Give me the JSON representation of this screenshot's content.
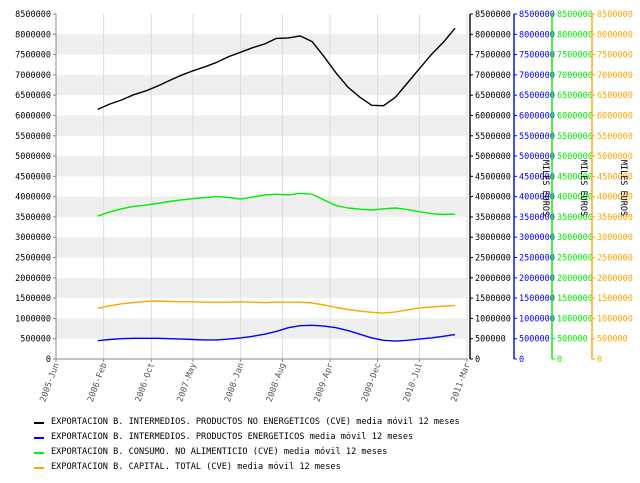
{
  "chart_data": {
    "type": "line",
    "x_tick_labels": [
      "2005-Jun",
      "2006-Feb",
      "2006-Oct",
      "2007-May",
      "2008-Jan",
      "2008-Aug",
      "2009-Apr",
      "2009-Dec",
      "2010-Jul",
      "2011-Mar"
    ],
    "y_tick_labels": [
      "0",
      "500000",
      "1000000",
      "1500000",
      "2000000",
      "2500000",
      "3000000",
      "3500000",
      "4000000",
      "4500000",
      "5000000",
      "5500000",
      "6000000",
      "6500000",
      "7000000",
      "7500000",
      "8000000",
      "8500000"
    ],
    "ylim": [
      0,
      8500000
    ],
    "grid": true,
    "legend_position": "bottom",
    "axis_unit_label": "MILES EUROS",
    "series": [
      {
        "name": "EXPORTACION B. INTERMEDIOS. PRODUCTOS NO ENERGETICOS (CVE) media móvil 12 meses",
        "color": "#000000",
        "axis": "black",
        "x": [
          "2006-01",
          "2006-03",
          "2006-05",
          "2006-07",
          "2006-09",
          "2006-11",
          "2007-01",
          "2007-03",
          "2007-05",
          "2007-07",
          "2007-09",
          "2007-11",
          "2008-01",
          "2008-03",
          "2008-05",
          "2008-07",
          "2008-09",
          "2008-11",
          "2009-01",
          "2009-03",
          "2009-05",
          "2009-07",
          "2009-09",
          "2009-11",
          "2010-01",
          "2010-03",
          "2010-05",
          "2010-07",
          "2010-09",
          "2010-11",
          "2011-01"
        ],
        "values": [
          6150000,
          6280000,
          6380000,
          6510000,
          6600000,
          6720000,
          6860000,
          6990000,
          7100000,
          7200000,
          7310000,
          7450000,
          7560000,
          7670000,
          7760000,
          7900000,
          7910000,
          7960000,
          7820000,
          7450000,
          7050000,
          6700000,
          6450000,
          6250000,
          6240000,
          6450000,
          6800000,
          7150000,
          7500000,
          7800000,
          8150000
        ]
      },
      {
        "name": "EXPORTACION B. INTERMEDIOS. PRODUCTOS ENERGETICOS media móvil 12 meses",
        "color": "#0000ff",
        "axis": "blue",
        "x": [
          "2006-01",
          "2006-03",
          "2006-05",
          "2006-07",
          "2006-09",
          "2006-11",
          "2007-01",
          "2007-03",
          "2007-05",
          "2007-07",
          "2007-09",
          "2007-11",
          "2008-01",
          "2008-03",
          "2008-05",
          "2008-07",
          "2008-09",
          "2008-11",
          "2009-01",
          "2009-03",
          "2009-05",
          "2009-07",
          "2009-09",
          "2009-11",
          "2010-01",
          "2010-03",
          "2010-05",
          "2010-07",
          "2010-09",
          "2010-11",
          "2011-01"
        ],
        "values": [
          450000,
          480000,
          500000,
          510000,
          510000,
          510000,
          500000,
          490000,
          480000,
          470000,
          470000,
          490000,
          520000,
          560000,
          610000,
          680000,
          770000,
          820000,
          830000,
          810000,
          770000,
          700000,
          610000,
          520000,
          460000,
          440000,
          460000,
          490000,
          520000,
          560000,
          600000
        ]
      },
      {
        "name": "EXPORTACION B. CONSUMO. NO ALIMENTICIO (CVE) media móvil 12 meses",
        "color": "#00ee00",
        "axis": "green",
        "x": [
          "2006-01",
          "2006-03",
          "2006-05",
          "2006-07",
          "2006-09",
          "2006-11",
          "2007-01",
          "2007-03",
          "2007-05",
          "2007-07",
          "2007-09",
          "2007-11",
          "2008-01",
          "2008-03",
          "2008-05",
          "2008-07",
          "2008-09",
          "2008-11",
          "2009-01",
          "2009-03",
          "2009-05",
          "2009-07",
          "2009-09",
          "2009-11",
          "2010-01",
          "2010-03",
          "2010-05",
          "2010-07",
          "2010-09",
          "2010-11",
          "2011-01"
        ],
        "values": [
          3520000,
          3620000,
          3700000,
          3760000,
          3790000,
          3830000,
          3880000,
          3920000,
          3950000,
          3980000,
          4000000,
          3980000,
          3940000,
          3990000,
          4040000,
          4060000,
          4040000,
          4080000,
          4060000,
          3920000,
          3780000,
          3720000,
          3690000,
          3670000,
          3700000,
          3720000,
          3680000,
          3630000,
          3580000,
          3560000,
          3570000
        ]
      },
      {
        "name": "EXPORTACION B. CAPITAL. TOTAL (CVE) media móvil 12 meses",
        "color": "#ffa500",
        "axis": "orange",
        "x": [
          "2006-01",
          "2006-03",
          "2006-05",
          "2006-07",
          "2006-09",
          "2006-11",
          "2007-01",
          "2007-03",
          "2007-05",
          "2007-07",
          "2007-09",
          "2007-11",
          "2008-01",
          "2008-03",
          "2008-05",
          "2008-07",
          "2008-09",
          "2008-11",
          "2009-01",
          "2009-03",
          "2009-05",
          "2009-07",
          "2009-09",
          "2009-11",
          "2010-01",
          "2010-03",
          "2010-05",
          "2010-07",
          "2010-09",
          "2010-11",
          "2011-01"
        ],
        "values": [
          1250000,
          1310000,
          1360000,
          1390000,
          1420000,
          1430000,
          1420000,
          1410000,
          1410000,
          1400000,
          1400000,
          1400000,
          1410000,
          1400000,
          1390000,
          1400000,
          1400000,
          1400000,
          1380000,
          1330000,
          1270000,
          1220000,
          1180000,
          1150000,
          1130000,
          1160000,
          1210000,
          1260000,
          1280000,
          1300000,
          1320000
        ]
      }
    ],
    "extra_axes": [
      {
        "color": "#000000"
      },
      {
        "color": "#0000ff",
        "label": "MILES EUROS"
      },
      {
        "color": "#00ee00",
        "label": "MILES EUROS"
      },
      {
        "color": "#ffa500",
        "label": "MILES EUROS"
      }
    ]
  }
}
